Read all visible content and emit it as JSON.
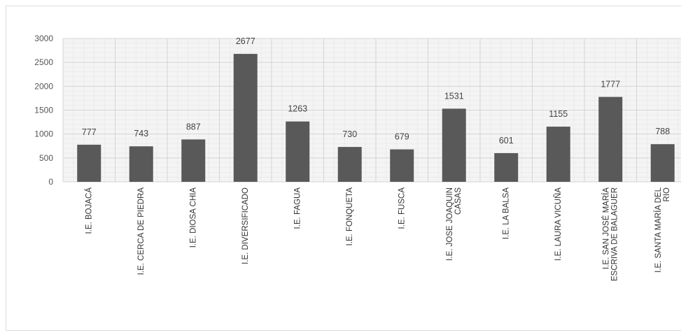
{
  "chart_data": {
    "type": "bar",
    "categories": [
      "I.E. BOJACÁ",
      "I.E. CERCA DE PIEDRA",
      "I.E. DIOSA CHIA",
      "I.E. DIVERSIFICADO",
      "I.E. FAGUA",
      "I.E. FONQUETA",
      "I.E. FUSCA",
      "I.E. JOSE JOAQUIN CASAS",
      "I.E. LA BALSA",
      "I.E. LAURA VICUÑA",
      "I.E. SAN JOSÉ MARÍA ESCRIVA DE BALAGUER",
      "I.E. SANTA MARÍA DEL RIO"
    ],
    "category_lines": [
      [
        "I.E. BOJACÁ"
      ],
      [
        "I.E. CERCA DE PIEDRA"
      ],
      [
        "I.E. DIOSA CHIA"
      ],
      [
        "I.E. DIVERSIFICADO"
      ],
      [
        "I.E. FAGUA"
      ],
      [
        "I.E. FONQUETA"
      ],
      [
        "I.E. FUSCA"
      ],
      [
        "I.E. JOSE JOAQUIN",
        "CASAS"
      ],
      [
        "I.E. LA BALSA"
      ],
      [
        "I.E. LAURA VICUÑA"
      ],
      [
        "I.E. SAN JOSÉ MARÍA",
        "ESCRIVA DE BALAGUER"
      ],
      [
        "I.E. SANTA MARÍA DEL",
        "RIO"
      ]
    ],
    "values": [
      777,
      743,
      887,
      2677,
      1263,
      730,
      679,
      1531,
      601,
      1155,
      1777,
      788
    ],
    "data_labels": [
      "777",
      "743",
      "887",
      "2677",
      "1263",
      "730",
      "679",
      "1531",
      "601",
      "1155",
      "1777",
      "788"
    ],
    "yticks": [
      0,
      500,
      1000,
      1500,
      2000,
      2500,
      3000
    ],
    "ylim": [
      0,
      3000
    ],
    "title": "",
    "xlabel": "",
    "ylabel": "",
    "grid": true,
    "legend": "none",
    "colors": {
      "bar": "#595959",
      "grid": "#d4d4d4",
      "plot_bg": "#f4f4f4"
    }
  }
}
